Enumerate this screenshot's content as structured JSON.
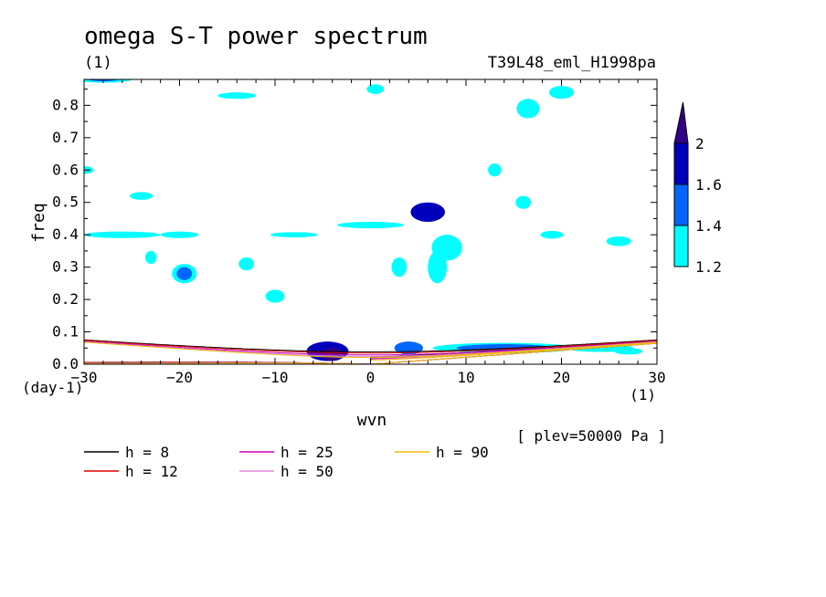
{
  "chart_data": {
    "type": "heatmap",
    "title": "omega S-T power spectrum",
    "subtitle_left": "(1)",
    "subtitle_right": "T39L48_eml_H1998pa",
    "xlabel": "wvn",
    "ylabel": "freq",
    "x_unit": "(1)",
    "y_unit": "(day-1)",
    "xlim": [
      -30,
      30
    ],
    "ylim": [
      0,
      0.88
    ],
    "xticks": [
      -30,
      -20,
      -10,
      0,
      10,
      20,
      30
    ],
    "yticks": [
      0.0,
      0.1,
      0.2,
      0.3,
      0.4,
      0.5,
      0.6,
      0.7,
      0.8
    ],
    "annotation": "[ plev=50000 Pa ]",
    "colorbar": {
      "levels": [
        1.2,
        1.4,
        1.6,
        2
      ],
      "labels": [
        "1.2",
        "1.4",
        "1.6",
        "2"
      ],
      "colors": [
        "#00ffff",
        "#0066ff",
        "#0000bb",
        "#330088"
      ]
    },
    "dispersion_curves": [
      {
        "name": "h = 8",
        "h": 8,
        "color": "#000000"
      },
      {
        "name": "h = 12",
        "h": 12,
        "color": "#dd0000"
      },
      {
        "name": "h = 25",
        "h": 25,
        "color": "#cc00bb"
      },
      {
        "name": "h = 50",
        "h": 50,
        "color": "#dd88dd"
      },
      {
        "name": "h = 90",
        "h": 90,
        "color": "#eebb00"
      }
    ],
    "power_patches": [
      {
        "x": -4.5,
        "y": 0.04,
        "rx": 2.2,
        "ry": 0.03,
        "level": 3
      },
      {
        "x": -4.0,
        "y": 0.03,
        "rx": 1.2,
        "ry": 0.02,
        "level": 4
      },
      {
        "x": 6.0,
        "y": 0.47,
        "rx": 1.8,
        "ry": 0.03,
        "level": 3
      },
      {
        "x": 6.0,
        "y": 0.46,
        "rx": 1.0,
        "ry": 0.015,
        "level": 2
      },
      {
        "x": 14.0,
        "y": 0.05,
        "rx": 5.0,
        "ry": 0.012,
        "level": 2
      },
      {
        "x": 14.0,
        "y": 0.05,
        "rx": 7.5,
        "ry": 0.016,
        "level": 1
      },
      {
        "x": 24.0,
        "y": 0.05,
        "rx": 3.5,
        "ry": 0.012,
        "level": 1
      },
      {
        "x": 4.0,
        "y": 0.05,
        "rx": 1.5,
        "ry": 0.02,
        "level": 2
      },
      {
        "x": 8.0,
        "y": 0.36,
        "rx": 1.6,
        "ry": 0.04,
        "level": 1
      },
      {
        "x": 7.0,
        "y": 0.3,
        "rx": 1.0,
        "ry": 0.05,
        "level": 1
      },
      {
        "x": 3.0,
        "y": 0.3,
        "rx": 0.8,
        "ry": 0.03,
        "level": 1
      },
      {
        "x": -26.0,
        "y": 0.4,
        "rx": 4.0,
        "ry": 0.01,
        "level": 1
      },
      {
        "x": -20.0,
        "y": 0.4,
        "rx": 2.0,
        "ry": 0.01,
        "level": 1
      },
      {
        "x": -8.0,
        "y": 0.4,
        "rx": 2.5,
        "ry": 0.008,
        "level": 1
      },
      {
        "x": 0.0,
        "y": 0.43,
        "rx": 3.5,
        "ry": 0.01,
        "level": 1
      },
      {
        "x": -28.0,
        "y": 0.88,
        "rx": 3.0,
        "ry": 0.01,
        "level": 1
      },
      {
        "x": -28.0,
        "y": 0.88,
        "rx": 1.5,
        "ry": 0.006,
        "level": 2
      },
      {
        "x": -14.0,
        "y": 0.83,
        "rx": 2.0,
        "ry": 0.01,
        "level": 1
      },
      {
        "x": -19.5,
        "y": 0.28,
        "rx": 0.8,
        "ry": 0.02,
        "level": 2
      },
      {
        "x": -19.5,
        "y": 0.28,
        "rx": 1.3,
        "ry": 0.03,
        "level": 1
      },
      {
        "x": -23.0,
        "y": 0.33,
        "rx": 0.6,
        "ry": 0.02,
        "level": 1
      },
      {
        "x": -13.0,
        "y": 0.31,
        "rx": 0.8,
        "ry": 0.02,
        "level": 1
      },
      {
        "x": 19.0,
        "y": 0.4,
        "rx": 1.2,
        "ry": 0.012,
        "level": 1
      },
      {
        "x": 26.0,
        "y": 0.38,
        "rx": 1.3,
        "ry": 0.015,
        "level": 1
      },
      {
        "x": 16.5,
        "y": 0.79,
        "rx": 1.2,
        "ry": 0.03,
        "level": 1
      },
      {
        "x": 20.0,
        "y": 0.84,
        "rx": 1.3,
        "ry": 0.02,
        "level": 1
      },
      {
        "x": 16.0,
        "y": 0.5,
        "rx": 0.8,
        "ry": 0.02,
        "level": 1
      },
      {
        "x": 13.0,
        "y": 0.6,
        "rx": 0.7,
        "ry": 0.02,
        "level": 1
      },
      {
        "x": -10.0,
        "y": 0.21,
        "rx": 1.0,
        "ry": 0.02,
        "level": 1
      },
      {
        "x": 0.5,
        "y": 0.85,
        "rx": 0.9,
        "ry": 0.015,
        "level": 1
      },
      {
        "x": -24.0,
        "y": 0.52,
        "rx": 1.2,
        "ry": 0.012,
        "level": 1
      },
      {
        "x": -30.0,
        "y": 0.6,
        "rx": 1.0,
        "ry": 0.012,
        "level": 1
      },
      {
        "x": 27.0,
        "y": 0.04,
        "rx": 1.5,
        "ry": 0.01,
        "level": 1
      }
    ]
  }
}
